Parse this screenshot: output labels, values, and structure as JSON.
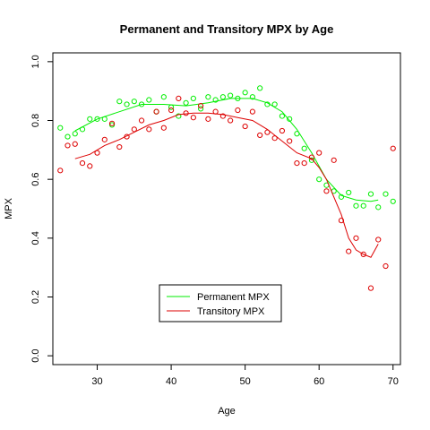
{
  "chart_data": {
    "type": "scatter",
    "title": "Permanent and Transitory MPX by Age",
    "xlabel": "Age",
    "ylabel": "MPX",
    "xlim": [
      24,
      71
    ],
    "ylim": [
      -0.03,
      1.03
    ],
    "xticks": [
      30,
      40,
      50,
      60,
      70
    ],
    "yticks": [
      0.0,
      0.2,
      0.4,
      0.6,
      0.8,
      1.0
    ],
    "xtick_labels": [
      "30",
      "40",
      "50",
      "60",
      "70"
    ],
    "ytick_labels": [
      "0.0",
      "0.2",
      "0.4",
      "0.6",
      "0.8",
      "1.0"
    ],
    "grid": false,
    "legend_position": "bottom-center",
    "series": [
      {
        "name": "Permanent MPX",
        "color": "#00ee00",
        "points": [
          [
            25,
            0.775
          ],
          [
            26,
            0.745
          ],
          [
            27,
            0.755
          ],
          [
            28,
            0.77
          ],
          [
            29,
            0.805
          ],
          [
            30,
            0.805
          ],
          [
            31,
            0.805
          ],
          [
            32,
            0.785
          ],
          [
            33,
            0.865
          ],
          [
            34,
            0.855
          ],
          [
            35,
            0.865
          ],
          [
            36,
            0.855
          ],
          [
            37,
            0.87
          ],
          [
            38,
            0.83
          ],
          [
            39,
            0.88
          ],
          [
            40,
            0.845
          ],
          [
            41,
            0.815
          ],
          [
            42,
            0.86
          ],
          [
            43,
            0.875
          ],
          [
            44,
            0.84
          ],
          [
            45,
            0.88
          ],
          [
            46,
            0.87
          ],
          [
            47,
            0.88
          ],
          [
            48,
            0.885
          ],
          [
            49,
            0.875
          ],
          [
            50,
            0.895
          ],
          [
            51,
            0.88
          ],
          [
            52,
            0.91
          ],
          [
            53,
            0.855
          ],
          [
            54,
            0.855
          ],
          [
            55,
            0.815
          ],
          [
            56,
            0.805
          ],
          [
            57,
            0.755
          ],
          [
            58,
            0.705
          ],
          [
            59,
            0.665
          ],
          [
            60,
            0.6
          ],
          [
            61,
            0.58
          ],
          [
            62,
            0.56
          ],
          [
            63,
            0.54
          ],
          [
            64,
            0.555
          ],
          [
            65,
            0.51
          ],
          [
            66,
            0.51
          ],
          [
            67,
            0.55
          ],
          [
            68,
            0.505
          ],
          [
            69,
            0.55
          ],
          [
            70,
            0.525
          ]
        ],
        "smooth": [
          [
            27,
            0.765
          ],
          [
            30,
            0.805
          ],
          [
            33,
            0.83
          ],
          [
            36,
            0.855
          ],
          [
            39,
            0.855
          ],
          [
            42,
            0.85
          ],
          [
            45,
            0.86
          ],
          [
            48,
            0.875
          ],
          [
            51,
            0.875
          ],
          [
            53,
            0.86
          ],
          [
            55,
            0.83
          ],
          [
            57,
            0.77
          ],
          [
            59,
            0.69
          ],
          [
            61,
            0.6
          ],
          [
            63,
            0.545
          ],
          [
            65,
            0.53
          ],
          [
            67,
            0.525
          ],
          [
            68,
            0.53
          ]
        ]
      },
      {
        "name": "Transitory MPX",
        "color": "#dd0000",
        "points": [
          [
            25,
            0.63
          ],
          [
            26,
            0.715
          ],
          [
            27,
            0.72
          ],
          [
            28,
            0.655
          ],
          [
            29,
            0.645
          ],
          [
            30,
            0.69
          ],
          [
            31,
            0.735
          ],
          [
            32,
            0.79
          ],
          [
            33,
            0.71
          ],
          [
            34,
            0.745
          ],
          [
            35,
            0.77
          ],
          [
            36,
            0.8
          ],
          [
            37,
            0.77
          ],
          [
            38,
            0.83
          ],
          [
            39,
            0.775
          ],
          [
            40,
            0.835
          ],
          [
            41,
            0.875
          ],
          [
            42,
            0.825
          ],
          [
            43,
            0.81
          ],
          [
            44,
            0.85
          ],
          [
            45,
            0.805
          ],
          [
            46,
            0.83
          ],
          [
            47,
            0.815
          ],
          [
            48,
            0.8
          ],
          [
            49,
            0.835
          ],
          [
            50,
            0.78
          ],
          [
            51,
            0.83
          ],
          [
            52,
            0.75
          ],
          [
            53,
            0.76
          ],
          [
            54,
            0.74
          ],
          [
            55,
            0.765
          ],
          [
            56,
            0.73
          ],
          [
            57,
            0.655
          ],
          [
            58,
            0.655
          ],
          [
            59,
            0.675
          ],
          [
            60,
            0.69
          ],
          [
            61,
            0.56
          ],
          [
            62,
            0.665
          ],
          [
            63,
            0.46
          ],
          [
            64,
            0.355
          ],
          [
            65,
            0.4
          ],
          [
            66,
            0.345
          ],
          [
            67,
            0.23
          ],
          [
            68,
            0.395
          ],
          [
            69,
            0.305
          ],
          [
            70,
            0.705
          ]
        ],
        "smooth": [
          [
            27,
            0.67
          ],
          [
            29,
            0.685
          ],
          [
            31,
            0.715
          ],
          [
            33,
            0.735
          ],
          [
            35,
            0.76
          ],
          [
            37,
            0.785
          ],
          [
            39,
            0.8
          ],
          [
            41,
            0.82
          ],
          [
            43,
            0.825
          ],
          [
            45,
            0.825
          ],
          [
            47,
            0.82
          ],
          [
            49,
            0.81
          ],
          [
            51,
            0.8
          ],
          [
            53,
            0.77
          ],
          [
            55,
            0.73
          ],
          [
            57,
            0.69
          ],
          [
            59,
            0.67
          ],
          [
            60,
            0.64
          ],
          [
            61,
            0.6
          ],
          [
            62,
            0.54
          ],
          [
            63,
            0.48
          ],
          [
            64,
            0.4
          ],
          [
            65,
            0.36
          ],
          [
            66,
            0.345
          ],
          [
            67,
            0.335
          ],
          [
            68,
            0.38
          ]
        ]
      }
    ]
  }
}
